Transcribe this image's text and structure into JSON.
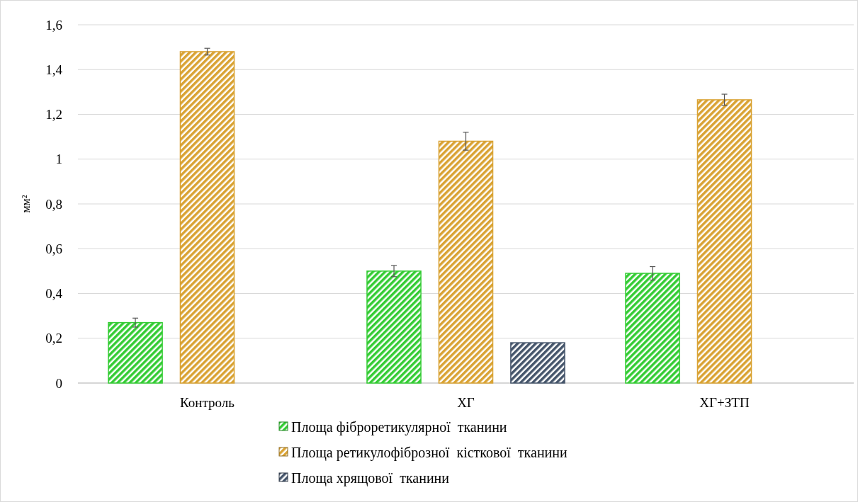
{
  "chart_data": {
    "type": "bar",
    "ylabel": "мм²",
    "categories": [
      "Контроль",
      "ХГ",
      "ХГ+ЗТП"
    ],
    "series": [
      {
        "name": "Площа фіброретикулярної  тканини",
        "color": "#33cc33",
        "values": [
          0.27,
          0.5,
          0.49
        ],
        "errors": [
          0.02,
          0.025,
          0.03
        ]
      },
      {
        "name": "Площа ретикулофіброзної  кісткової  тканини",
        "color": "#d9a232",
        "values": [
          1.48,
          1.08,
          1.265
        ],
        "errors": [
          0.015,
          0.04,
          0.025
        ]
      },
      {
        "name": "Площа хрящової  тканини",
        "color": "#44546a",
        "values": [
          null,
          0.18,
          null
        ]
      }
    ],
    "ylim": [
      0,
      1.6
    ],
    "yticks": [
      0,
      {
        "value": 0.2,
        "label": "0,2"
      },
      {
        "value": 0.4,
        "label": "0,4"
      },
      {
        "value": 0.6,
        "label": "0,6"
      },
      {
        "value": 0.8,
        "label": "0,8"
      },
      1,
      {
        "value": 1.2,
        "label": "1,2"
      },
      {
        "value": 1.4,
        "label": "1,4"
      },
      {
        "value": 1.6,
        "label": "1,6"
      }
    ],
    "grid": "y",
    "legend": "bottom"
  }
}
